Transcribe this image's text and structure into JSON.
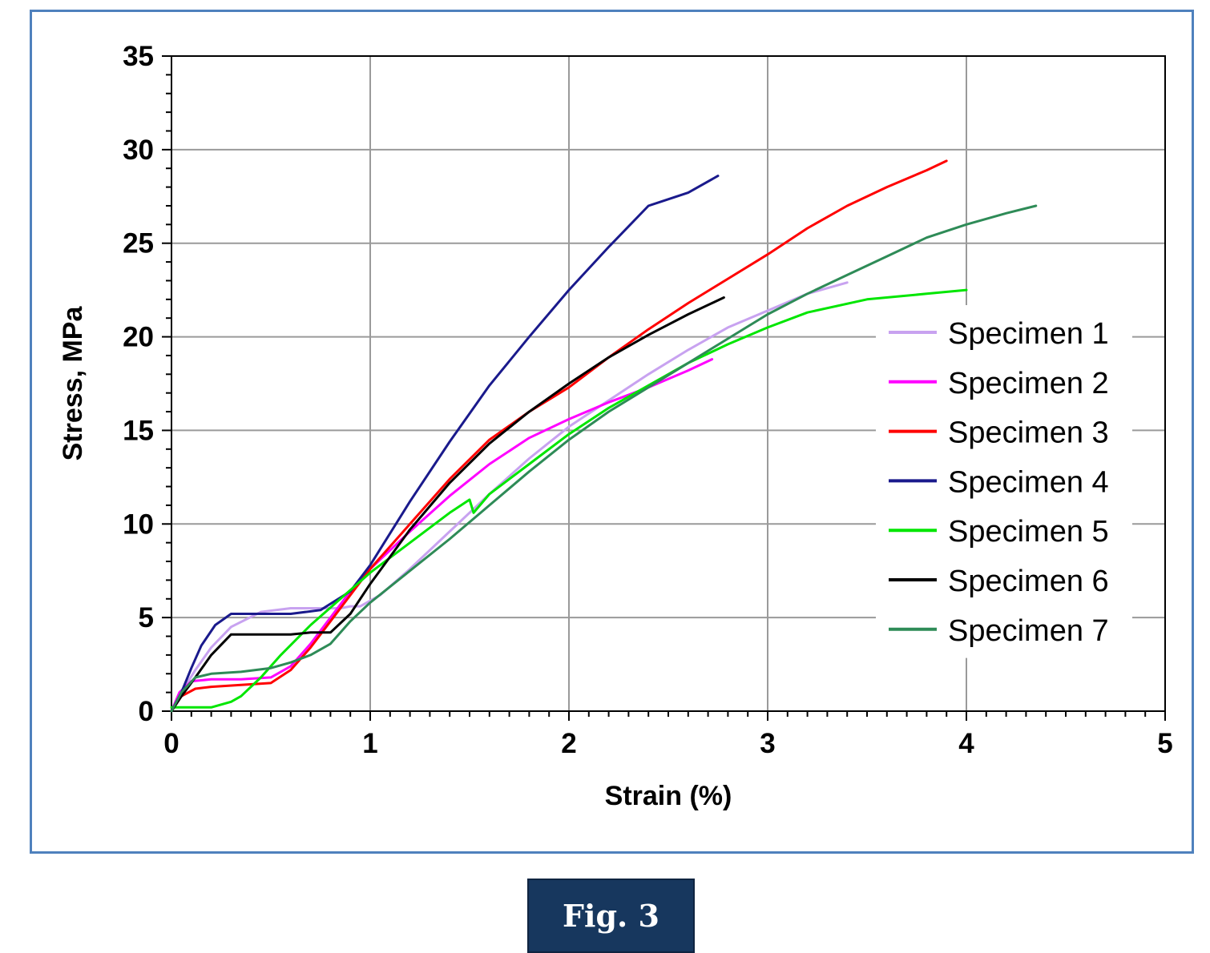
{
  "figure": {
    "caption": "Fig. 3"
  },
  "chart_data": {
    "type": "line",
    "title": "",
    "xlabel": "Strain (%)",
    "ylabel": "Stress, MPa",
    "xlim": [
      0,
      5
    ],
    "ylim": [
      0,
      35
    ],
    "xticks": [
      0,
      1,
      2,
      3,
      4,
      5
    ],
    "yticks": [
      0,
      5,
      10,
      15,
      20,
      25,
      30,
      35
    ],
    "grid": true,
    "legend_position": "right",
    "series": [
      {
        "name": "Specimen 1",
        "color": "#c8a2f0",
        "x": [
          0,
          0.05,
          0.12,
          0.2,
          0.3,
          0.45,
          0.6,
          0.75,
          0.85,
          0.9,
          0.95,
          1.05,
          1.2,
          1.4,
          1.6,
          1.8,
          2.0,
          2.2,
          2.4,
          2.6,
          2.8,
          3.0,
          3.2,
          3.4
        ],
        "values": [
          0,
          1.0,
          2.2,
          3.4,
          4.5,
          5.3,
          5.5,
          5.5,
          5.5,
          5.6,
          5.6,
          6.2,
          7.6,
          9.6,
          11.6,
          13.5,
          15.2,
          16.6,
          18.0,
          19.3,
          20.5,
          21.4,
          22.3,
          22.9
        ]
      },
      {
        "name": "Specimen 2",
        "color": "#ff00ff",
        "x": [
          0,
          0.04,
          0.1,
          0.2,
          0.35,
          0.5,
          0.6,
          0.7,
          0.8,
          0.9,
          1.0,
          1.2,
          1.4,
          1.6,
          1.8,
          2.0,
          2.2,
          2.4,
          2.6,
          2.72
        ],
        "values": [
          0,
          1.0,
          1.6,
          1.7,
          1.7,
          1.8,
          2.4,
          3.6,
          5.0,
          6.4,
          7.6,
          9.6,
          11.5,
          13.2,
          14.6,
          15.6,
          16.5,
          17.3,
          18.2,
          18.8
        ]
      },
      {
        "name": "Specimen 3",
        "color": "#ff0000",
        "x": [
          0,
          0.05,
          0.12,
          0.2,
          0.35,
          0.5,
          0.6,
          0.7,
          0.8,
          0.9,
          1.0,
          1.2,
          1.4,
          1.6,
          1.8,
          2.0,
          2.2,
          2.4,
          2.6,
          2.8,
          3.0,
          3.2,
          3.4,
          3.6,
          3.8,
          3.9
        ],
        "values": [
          0,
          0.8,
          1.2,
          1.3,
          1.4,
          1.5,
          2.2,
          3.4,
          4.8,
          6.2,
          7.6,
          10.0,
          12.4,
          14.5,
          16.0,
          17.3,
          18.9,
          20.4,
          21.8,
          23.1,
          24.4,
          25.8,
          27.0,
          28.0,
          28.9,
          29.4
        ]
      },
      {
        "name": "Specimen 4",
        "color": "#1a1a8c",
        "x": [
          0,
          0.05,
          0.1,
          0.15,
          0.22,
          0.3,
          0.45,
          0.6,
          0.75,
          0.9,
          1.0,
          1.2,
          1.4,
          1.6,
          1.8,
          2.0,
          2.2,
          2.4,
          2.6,
          2.75
        ],
        "values": [
          0,
          1.0,
          2.3,
          3.5,
          4.6,
          5.2,
          5.2,
          5.2,
          5.4,
          6.4,
          7.8,
          11.2,
          14.4,
          17.4,
          20.0,
          22.5,
          24.8,
          27.0,
          27.7,
          28.6
        ]
      },
      {
        "name": "Specimen 5",
        "color": "#00e600",
        "x": [
          0,
          0.1,
          0.2,
          0.3,
          0.35,
          0.45,
          0.55,
          0.7,
          0.85,
          1.0,
          1.2,
          1.4,
          1.5,
          1.52,
          1.6,
          1.8,
          2.0,
          2.2,
          2.4,
          2.6,
          2.8,
          3.0,
          3.2,
          3.5,
          3.8,
          4.0
        ],
        "values": [
          0.2,
          0.2,
          0.2,
          0.5,
          0.8,
          1.8,
          3.0,
          4.6,
          6.0,
          7.4,
          9.0,
          10.6,
          11.3,
          10.6,
          11.6,
          13.2,
          14.8,
          16.2,
          17.4,
          18.6,
          19.6,
          20.5,
          21.3,
          22.0,
          22.3,
          22.5
        ]
      },
      {
        "name": "Specimen 6",
        "color": "#000000",
        "x": [
          0,
          0.05,
          0.12,
          0.2,
          0.3,
          0.45,
          0.6,
          0.7,
          0.8,
          0.9,
          1.0,
          1.2,
          1.4,
          1.6,
          1.8,
          2.0,
          2.2,
          2.4,
          2.6,
          2.78
        ],
        "values": [
          0,
          0.8,
          1.8,
          3.0,
          4.1,
          4.1,
          4.1,
          4.2,
          4.2,
          5.2,
          6.8,
          9.7,
          12.2,
          14.3,
          16.0,
          17.5,
          18.9,
          20.1,
          21.2,
          22.1
        ]
      },
      {
        "name": "Specimen 7",
        "color": "#2e8b57",
        "x": [
          0,
          0.05,
          0.12,
          0.2,
          0.35,
          0.5,
          0.6,
          0.7,
          0.8,
          0.9,
          1.0,
          1.2,
          1.4,
          1.6,
          1.8,
          2.0,
          2.2,
          2.4,
          2.6,
          2.8,
          3.0,
          3.2,
          3.4,
          3.6,
          3.8,
          4.0,
          4.2,
          4.35
        ],
        "values": [
          0,
          1.0,
          1.8,
          2.0,
          2.1,
          2.3,
          2.6,
          3.0,
          3.6,
          4.8,
          5.8,
          7.5,
          9.2,
          11.0,
          12.8,
          14.5,
          16.0,
          17.3,
          18.6,
          19.9,
          21.2,
          22.3,
          23.3,
          24.3,
          25.3,
          26.0,
          26.6,
          27.0
        ]
      }
    ]
  }
}
